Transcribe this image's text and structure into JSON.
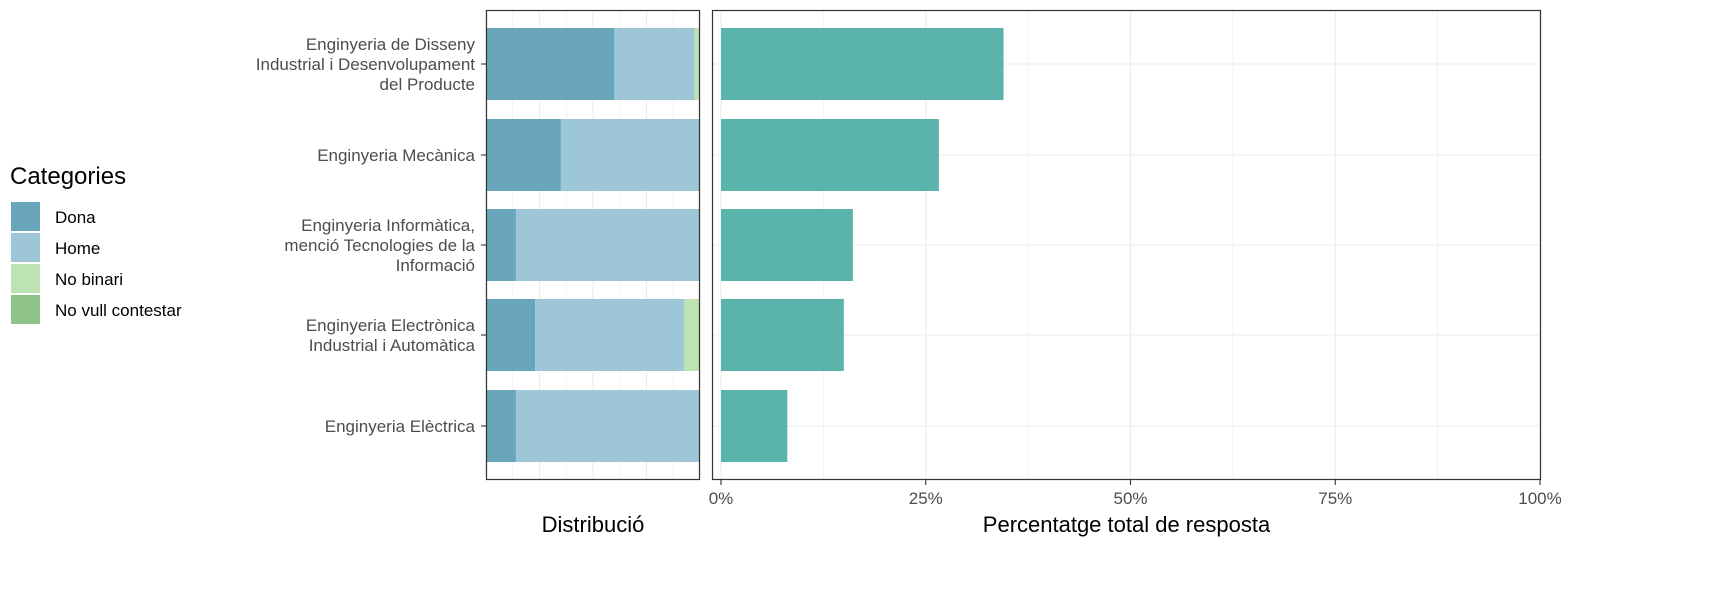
{
  "legend": {
    "title": "Categories",
    "items": [
      {
        "label": "Dona",
        "color": "#6aa6bb"
      },
      {
        "label": "Home",
        "color": "#9dc7d6"
      },
      {
        "label": "No binari",
        "color": "#bde3b2"
      },
      {
        "label": "No vull contestar",
        "color": "#8fc488"
      }
    ]
  },
  "chart_data": [
    {
      "type": "bar",
      "orientation": "horizontal",
      "stacked": true,
      "normalized": true,
      "xlabel": "Distribució",
      "categories": [
        [
          "Enginyeria de Disseny",
          "Industrial i Desenvolupament",
          "del Producte"
        ],
        [
          "Enginyeria Mecànica"
        ],
        [
          "Enginyeria Informàtica,",
          "menció Tecnologies de la",
          "Informació"
        ],
        [
          "Enginyeria Electrònica",
          "Industrial i Automàtica"
        ],
        [
          "Enginyeria Elèctrica"
        ]
      ],
      "series": [
        {
          "name": "Dona",
          "color": "#6aa6bb",
          "values": [
            0.6,
            0.35,
            0.14,
            0.23,
            0.14
          ]
        },
        {
          "name": "Home",
          "color": "#9dc7d6",
          "values": [
            0.375,
            0.65,
            0.86,
            0.695,
            0.86
          ]
        },
        {
          "name": "No binari",
          "color": "#bde3b2",
          "values": [
            0.025,
            0,
            0,
            0.075,
            0
          ]
        },
        {
          "name": "No vull contestar",
          "color": "#8fc488",
          "values": [
            0,
            0,
            0,
            0,
            0
          ]
        }
      ],
      "grid": true
    },
    {
      "type": "bar",
      "orientation": "horizontal",
      "xlabel": "Percentatge total de resposta",
      "color": "#5ab4ab",
      "values": [
        0.345,
        0.266,
        0.161,
        0.15,
        0.081
      ],
      "xlim": [
        0,
        1
      ],
      "xticks": [
        0,
        0.25,
        0.5,
        0.75,
        1
      ],
      "xtick_labels": [
        "0%",
        "25%",
        "50%",
        "75%",
        "100%"
      ],
      "grid": true
    }
  ]
}
